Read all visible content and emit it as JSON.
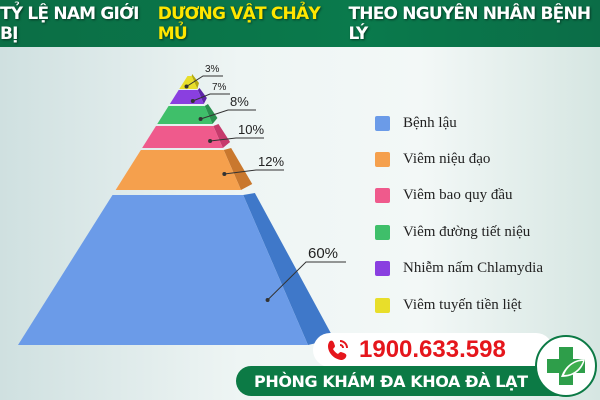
{
  "header": {
    "title_pre": "TỶ LỆ NAM GIỚI BỊ",
    "title_highlight": "DƯƠNG VẬT CHẢY MỦ",
    "title_post": "THEO NGUYÊN NHÂN BỆNH LÝ"
  },
  "chart_data": {
    "type": "pyramid",
    "categories": [
      "Bệnh lậu",
      "Viêm niệu đạo",
      "Viêm bao quy đầu",
      "Viêm đường tiết niệu",
      "Nhiễm nấm Chlamydia",
      "Viêm tuyến tiền liệt"
    ],
    "values": [
      60,
      12,
      10,
      8,
      7,
      3
    ],
    "labels": [
      "60%",
      "12%",
      "10%",
      "8%",
      "7%",
      "3%"
    ],
    "colors": [
      "#6b9be8",
      "#f5a04d",
      "#ef5a8c",
      "#3fbf6a",
      "#8a3fe0",
      "#e8de2a"
    ],
    "side_colors": [
      "#3f78c9",
      "#c9782e",
      "#c63a6c",
      "#2a8f4e",
      "#5e24a8",
      "#b5ab10"
    ],
    "legend_placement": "right"
  },
  "contact": {
    "phone": "1900.633.598",
    "clinic": "PHÒNG KHÁM ĐA KHOA ĐÀ LẠT",
    "phone_icon": "phone-ringing-icon",
    "logo_icon": "green-cross-leaf-icon",
    "accent": "#0c7a45",
    "phone_color": "#e5161c"
  }
}
